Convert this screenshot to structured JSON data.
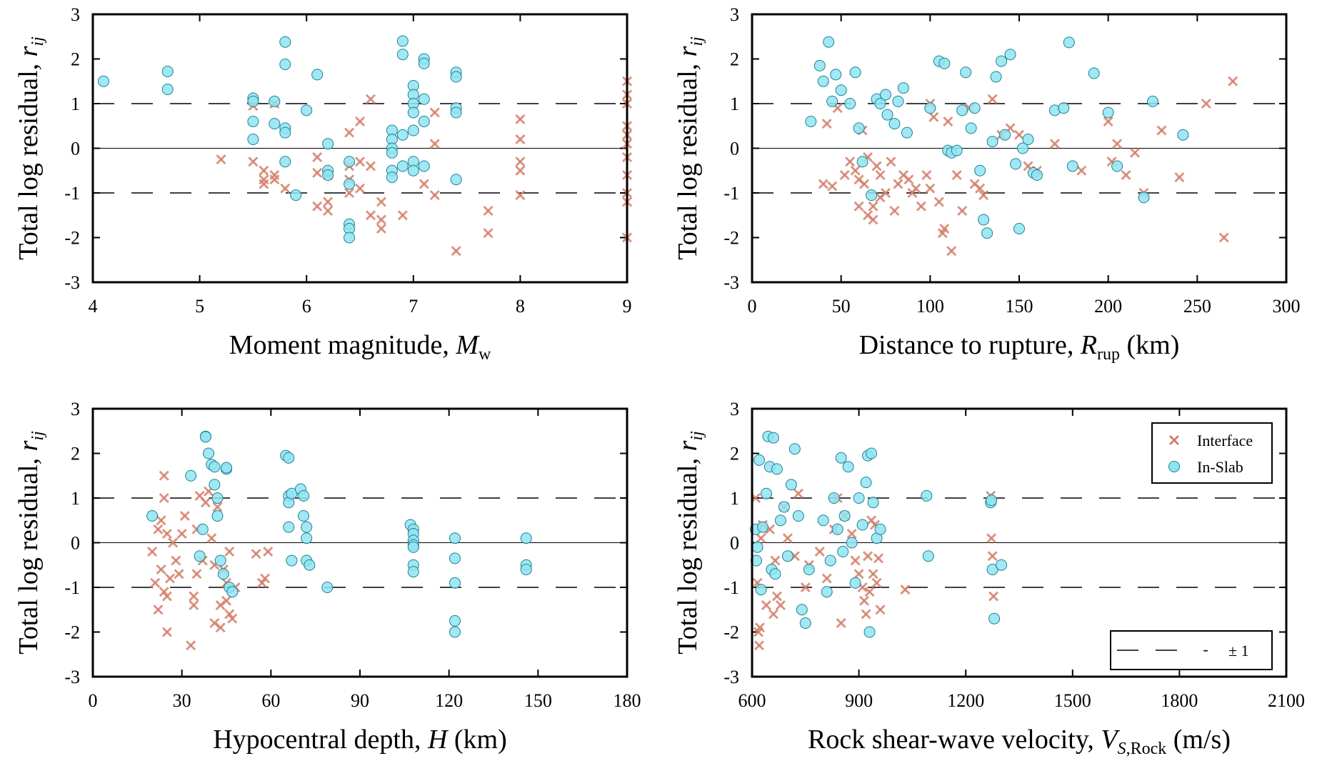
{
  "colors": {
    "interface": "#D4806B",
    "inslab": "#4FD3E8",
    "inslab_fill": "#8FE4F2",
    "inslab_edge": "#1F7F90"
  },
  "legend": {
    "interface": "Interface",
    "inslab": "In-Slab",
    "band": "± 1",
    "band_dash": "-"
  },
  "chart_data": [
    {
      "type": "scatter",
      "title": "",
      "xlabel": "Moment magnitude, M",
      "xlabel_sub": "w",
      "xlabel_tail": "",
      "ylabel": "Total log residual, r",
      "ylabel_sub": "ij",
      "xlim": [
        4,
        9
      ],
      "ylim": [
        -3,
        3
      ],
      "xticks": [
        4,
        5,
        6,
        7,
        8,
        9
      ],
      "yticks": [
        -3,
        -2,
        -1,
        0,
        1,
        2,
        3
      ],
      "ref_lines": [
        1,
        0,
        -1
      ],
      "series": [
        {
          "name": "Interface",
          "x": [
            5.2,
            5.5,
            5.5,
            5.6,
            5.6,
            5.6,
            5.7,
            5.7,
            5.7,
            5.8,
            6.1,
            6.1,
            6.1,
            6.2,
            6.2,
            6.2,
            6.4,
            6.4,
            6.4,
            6.4,
            6.5,
            6.5,
            6.5,
            6.6,
            6.6,
            6.6,
            6.7,
            6.7,
            6.7,
            6.9,
            7.1,
            7.2,
            7.2,
            7.2,
            7.4,
            7.7,
            7.7,
            8.0,
            8.0,
            8.0,
            8.0,
            8.0,
            9.0,
            9.0,
            9.0,
            9.0,
            9.0,
            9.0,
            9.0,
            9.0,
            9.0,
            9.0,
            9.0
          ],
          "y": [
            -0.25,
            0.95,
            -0.3,
            -0.5,
            -0.7,
            -0.8,
            1.0,
            -0.6,
            -0.7,
            -0.9,
            -0.2,
            -0.55,
            -1.3,
            -0.6,
            -1.2,
            -1.4,
            0.35,
            -0.4,
            -0.7,
            -1.0,
            0.6,
            -0.3,
            -0.9,
            1.1,
            -0.4,
            -1.5,
            -1.2,
            -1.6,
            -1.8,
            -1.5,
            -0.8,
            0.8,
            0.1,
            -1.05,
            -2.3,
            -1.4,
            -1.9,
            0.65,
            0.2,
            -0.3,
            -0.5,
            -1.05,
            1.5,
            1.2,
            1.0,
            0.5,
            0.3,
            0.1,
            -0.2,
            -0.6,
            -1.0,
            -1.2,
            -2.0
          ]
        },
        {
          "name": "In-Slab",
          "x": [
            4.1,
            4.7,
            4.7,
            5.5,
            5.5,
            5.5,
            5.5,
            5.7,
            5.7,
            5.8,
            5.8,
            5.8,
            5.8,
            5.8,
            5.9,
            6.0,
            6.1,
            6.2,
            6.2,
            6.2,
            6.4,
            6.4,
            6.4,
            6.4,
            6.4,
            6.8,
            6.8,
            6.8,
            6.8,
            6.8,
            6.8,
            6.9,
            6.9,
            6.9,
            6.9,
            7.0,
            7.0,
            7.0,
            7.0,
            7.0,
            7.0,
            7.0,
            7.1,
            7.1,
            7.1,
            7.1,
            7.1,
            7.4,
            7.4,
            7.4,
            7.4,
            7.4
          ],
          "y": [
            1.5,
            1.72,
            1.32,
            1.12,
            1.05,
            0.6,
            0.2,
            1.05,
            0.55,
            2.38,
            1.88,
            0.45,
            0.35,
            -0.3,
            -1.05,
            0.85,
            1.65,
            0.1,
            -0.5,
            -0.6,
            -0.3,
            -0.8,
            -1.7,
            -1.8,
            -2.0,
            0.4,
            0.2,
            0.0,
            -0.1,
            -0.5,
            -0.65,
            2.4,
            2.1,
            0.3,
            -0.4,
            1.4,
            1.2,
            1.0,
            0.8,
            0.4,
            -0.3,
            -0.5,
            2.0,
            1.9,
            1.1,
            0.6,
            -0.4,
            1.7,
            1.6,
            0.9,
            0.8,
            -0.7
          ]
        }
      ]
    },
    {
      "type": "scatter",
      "title": "",
      "xlabel": "Distance to rupture, R",
      "xlabel_sub": "rup",
      "xlabel_tail": " (km)",
      "ylabel": "Total log residual, r",
      "ylabel_sub": "ij",
      "xlim": [
        0,
        300
      ],
      "ylim": [
        -3,
        3
      ],
      "xticks": [
        0,
        50,
        100,
        150,
        200,
        250,
        300
      ],
      "yticks": [
        -3,
        -2,
        -1,
        0,
        1,
        2,
        3
      ],
      "ref_lines": [
        1,
        0,
        -1
      ],
      "series": [
        {
          "name": "Interface",
          "x": [
            40,
            42,
            45,
            48,
            52,
            55,
            58,
            60,
            60,
            62,
            63,
            65,
            65,
            68,
            68,
            70,
            72,
            72,
            75,
            78,
            80,
            82,
            85,
            88,
            90,
            92,
            95,
            98,
            100,
            100,
            102,
            105,
            107,
            108,
            110,
            112,
            115,
            118,
            122,
            125,
            128,
            130,
            135,
            140,
            145,
            150,
            155,
            160,
            170,
            185,
            200,
            202,
            205,
            210,
            215,
            220,
            230,
            240,
            255,
            265,
            270
          ],
          "y": [
            -0.8,
            0.55,
            -0.85,
            0.9,
            -0.6,
            -0.3,
            -0.5,
            -0.7,
            -1.3,
            0.4,
            -0.8,
            -1.5,
            -0.2,
            -1.3,
            -1.6,
            -0.4,
            -0.6,
            -1.1,
            -1.0,
            -0.3,
            -1.4,
            -0.8,
            -0.6,
            -0.7,
            -1.0,
            -0.9,
            -1.3,
            -0.6,
            1.0,
            -0.9,
            0.7,
            -1.2,
            -1.9,
            -1.8,
            0.6,
            -2.3,
            -0.6,
            -1.4,
            0.9,
            -0.8,
            -0.9,
            -1.05,
            1.1,
            0.3,
            0.45,
            0.3,
            -0.4,
            -0.5,
            0.1,
            -0.5,
            0.6,
            -0.3,
            0.1,
            -0.6,
            -0.1,
            -1.0,
            0.4,
            -0.65,
            1.0,
            -2.0,
            1.5
          ],
          "x2": []
        },
        {
          "name": "In-Slab",
          "x": [
            33,
            38,
            40,
            43,
            45,
            47,
            50,
            55,
            58,
            60,
            62,
            67,
            70,
            72,
            75,
            76,
            80,
            82,
            85,
            87,
            100,
            105,
            108,
            110,
            112,
            115,
            118,
            120,
            123,
            125,
            128,
            130,
            132,
            135,
            137,
            140,
            142,
            145,
            148,
            150,
            152,
            155,
            158,
            160,
            170,
            175,
            178,
            180,
            192,
            200,
            205,
            220,
            225,
            242
          ],
          "y": [
            0.6,
            1.85,
            1.5,
            2.38,
            1.05,
            1.65,
            1.3,
            1.0,
            1.7,
            0.45,
            -0.3,
            -1.05,
            1.1,
            1.0,
            1.2,
            0.75,
            0.55,
            1.05,
            1.35,
            0.35,
            0.9,
            1.95,
            1.9,
            -0.05,
            -0.1,
            -0.05,
            0.85,
            1.7,
            0.45,
            0.9,
            -0.5,
            -1.6,
            -1.9,
            0.15,
            1.6,
            1.95,
            0.3,
            2.1,
            -0.35,
            -1.8,
            0.0,
            0.2,
            -0.55,
            -0.6,
            0.85,
            0.9,
            2.37,
            -0.4,
            1.68,
            0.8,
            -0.4,
            -1.1,
            1.05,
            0.3
          ]
        }
      ]
    },
    {
      "type": "scatter",
      "title": "",
      "xlabel": "Hypocentral depth, H",
      "xlabel_sub": "",
      "xlabel_tail": " (km)",
      "ylabel": "Total log residual, r",
      "ylabel_sub": "ij",
      "xlim": [
        0,
        180
      ],
      "ylim": [
        -3,
        3
      ],
      "xticks": [
        0,
        30,
        60,
        90,
        120,
        150,
        180
      ],
      "yticks": [
        -3,
        -2,
        -1,
        0,
        1,
        2,
        3
      ],
      "ref_lines": [
        1,
        0,
        -1
      ],
      "series": [
        {
          "name": "Interface",
          "x": [
            20,
            21,
            22,
            22,
            23,
            23,
            24,
            24,
            24,
            25,
            25,
            25,
            26,
            27,
            28,
            29,
            30,
            31,
            33,
            34,
            34,
            35,
            35,
            36,
            37,
            38,
            39,
            40,
            41,
            41,
            42,
            43,
            43,
            44,
            45,
            45,
            46,
            46,
            47,
            48,
            55,
            57,
            58,
            59
          ],
          "y": [
            -0.2,
            -0.9,
            -1.5,
            0.3,
            0.5,
            -0.6,
            1.5,
            1.0,
            -1.1,
            0.2,
            -1.2,
            -2.0,
            -0.8,
            0.0,
            -0.4,
            -0.7,
            0.2,
            0.6,
            -2.3,
            -1.2,
            -1.4,
            0.3,
            -0.7,
            1.05,
            -0.4,
            0.9,
            1.15,
            0.1,
            -1.8,
            -0.5,
            0.8,
            -1.4,
            -1.9,
            -0.6,
            -0.9,
            -1.3,
            -0.2,
            -1.6,
            -1.7,
            -1.0,
            -0.25,
            -0.9,
            -0.8,
            -0.2
          ]
        },
        {
          "name": "In-Slab",
          "x": [
            20,
            33,
            36,
            37,
            38,
            38,
            39,
            40,
            41,
            41,
            42,
            42,
            43,
            44,
            45,
            45,
            46,
            47,
            65,
            66,
            66,
            66,
            66,
            67,
            67,
            70,
            71,
            71,
            72,
            72,
            72,
            73,
            79,
            107,
            108,
            108,
            108,
            108,
            108,
            108,
            108,
            122,
            122,
            122,
            122,
            122,
            146,
            146,
            146
          ],
          "y": [
            0.6,
            1.5,
            -0.3,
            0.3,
            2.38,
            2.37,
            2.0,
            1.75,
            1.7,
            1.3,
            1.0,
            0.6,
            -0.4,
            -0.7,
            1.65,
            1.68,
            -1.0,
            -1.1,
            1.95,
            1.9,
            1.05,
            0.9,
            0.35,
            -0.4,
            1.1,
            1.2,
            1.05,
            0.6,
            0.35,
            0.1,
            -0.4,
            -0.5,
            -1.0,
            0.4,
            0.3,
            0.2,
            0.05,
            -0.05,
            -0.1,
            -0.5,
            -0.65,
            0.1,
            -0.35,
            -0.9,
            -1.75,
            -2.0,
            0.1,
            -0.5,
            -0.6
          ]
        }
      ]
    },
    {
      "type": "scatter",
      "title": "",
      "xlabel": "Rock shear-wave velocity, V",
      "xlabel_sub": "S,Rock",
      "xlabel_tail": " (m/s)",
      "ylabel": "Total log residual, r",
      "ylabel_sub": "ij",
      "xlim": [
        600,
        2100
      ],
      "ylim": [
        -3,
        3
      ],
      "xticks": [
        600,
        900,
        1200,
        1500,
        1800,
        2100
      ],
      "yticks": [
        -3,
        -2,
        -1,
        0,
        1,
        2,
        3
      ],
      "ref_lines": [
        1,
        0,
        -1
      ],
      "series": [
        {
          "name": "Interface",
          "x": [
            610,
            615,
            618,
            620,
            622,
            625,
            630,
            640,
            650,
            660,
            665,
            670,
            680,
            690,
            700,
            720,
            730,
            750,
            760,
            790,
            810,
            830,
            840,
            850,
            860,
            880,
            890,
            900,
            910,
            915,
            920,
            925,
            930,
            935,
            940,
            945,
            950,
            955,
            960,
            1030,
            1270,
            1272,
            1275,
            1278
          ],
          "y": [
            1.0,
            -0.9,
            -2.0,
            -2.3,
            -1.9,
            0.1,
            0.4,
            -1.4,
            0.3,
            -1.6,
            -0.4,
            -1.2,
            -1.4,
            0.8,
            0.1,
            -0.3,
            1.1,
            -1.0,
            -0.5,
            -0.2,
            -0.8,
            0.3,
            1.0,
            -1.8,
            0.6,
            0.2,
            -0.4,
            -0.7,
            -1.0,
            -1.3,
            -1.6,
            -0.3,
            -1.1,
            0.5,
            -0.7,
            0.4,
            -0.9,
            -0.35,
            -1.5,
            -1.05,
            1.05,
            0.1,
            -0.3,
            -1.2
          ],
          "x2": []
        },
        {
          "name": "In-Slab",
          "x": [
            610,
            612,
            615,
            620,
            625,
            630,
            640,
            645,
            650,
            655,
            660,
            665,
            670,
            680,
            690,
            700,
            710,
            720,
            730,
            740,
            750,
            760,
            800,
            810,
            820,
            830,
            840,
            850,
            855,
            860,
            870,
            880,
            890,
            900,
            910,
            920,
            925,
            930,
            935,
            940,
            950,
            960,
            1090,
            1095,
            1270,
            1272,
            1275,
            1280,
            1300
          ],
          "y": [
            0.3,
            -0.4,
            -0.1,
            1.85,
            -1.05,
            0.35,
            1.1,
            2.38,
            1.7,
            -0.6,
            2.35,
            -0.7,
            1.65,
            0.5,
            0.8,
            -0.3,
            1.3,
            2.1,
            0.6,
            -1.5,
            -1.8,
            -0.6,
            0.5,
            -1.1,
            -0.4,
            1.0,
            0.3,
            1.9,
            -0.2,
            0.6,
            1.7,
            0.0,
            -0.9,
            1.0,
            0.4,
            1.35,
            1.95,
            -2.0,
            2.0,
            0.9,
            0.1,
            0.3,
            1.05,
            -0.3,
            0.9,
            0.95,
            -0.6,
            -1.7,
            -0.5
          ]
        }
      ]
    }
  ]
}
